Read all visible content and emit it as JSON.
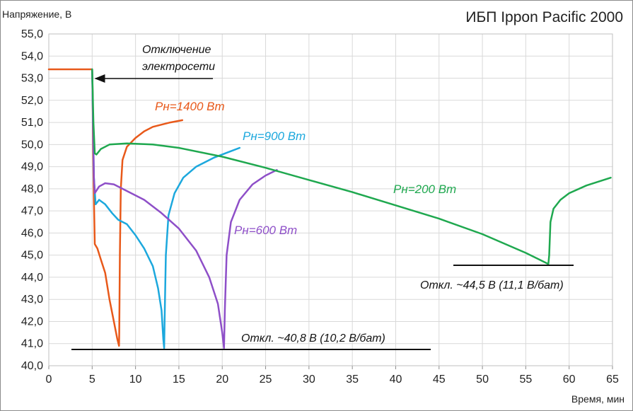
{
  "chart_data": {
    "type": "line",
    "title": "ИБП Ippon Pacific 2000",
    "ylabel": "Напряжение, В",
    "xlabel": "Время, мин",
    "xlim": [
      0,
      65
    ],
    "ylim": [
      40.0,
      55.0
    ],
    "x_ticks": [
      "0",
      "5",
      "10",
      "15",
      "20",
      "25",
      "30",
      "35",
      "40",
      "45",
      "50",
      "55",
      "60",
      "65"
    ],
    "y_ticks": [
      "40,0",
      "41,0",
      "42,0",
      "43,0",
      "44,0",
      "45,0",
      "46,0",
      "47,0",
      "48,0",
      "49,0",
      "50,0",
      "51,0",
      "52,0",
      "53,0",
      "54,0",
      "55,0"
    ],
    "grid": true,
    "legend": "none",
    "series": [
      {
        "name": "Pн=1400 Вт",
        "color": "#E8591A",
        "points": [
          [
            0,
            53.4
          ],
          [
            5.0,
            53.4
          ],
          [
            5.05,
            52.5
          ],
          [
            5.1,
            50.0
          ],
          [
            5.2,
            47.5
          ],
          [
            5.3,
            45.5
          ],
          [
            5.6,
            45.3
          ],
          [
            6.0,
            44.8
          ],
          [
            6.5,
            44.2
          ],
          [
            7.0,
            43.0
          ],
          [
            7.5,
            42.0
          ],
          [
            7.9,
            41.2
          ],
          [
            8.1,
            40.9
          ],
          [
            8.12,
            41.5
          ],
          [
            8.2,
            45.0
          ],
          [
            8.3,
            48.0
          ],
          [
            8.5,
            49.3
          ],
          [
            9.0,
            49.9
          ],
          [
            10.0,
            50.3
          ],
          [
            11.0,
            50.6
          ],
          [
            12.0,
            50.8
          ],
          [
            13.0,
            50.9
          ],
          [
            14.0,
            51.0
          ],
          [
            15.4,
            51.1
          ]
        ]
      },
      {
        "name": "Pн=900 Вт",
        "color": "#1CA8DD",
        "points": [
          [
            5.0,
            53.4
          ],
          [
            5.1,
            51.0
          ],
          [
            5.2,
            48.5
          ],
          [
            5.4,
            47.3
          ],
          [
            5.8,
            47.5
          ],
          [
            6.5,
            47.3
          ],
          [
            7.3,
            46.9
          ],
          [
            8.0,
            46.6
          ],
          [
            9.0,
            46.4
          ],
          [
            10.0,
            45.9
          ],
          [
            11.0,
            45.3
          ],
          [
            12.0,
            44.5
          ],
          [
            12.6,
            43.5
          ],
          [
            13.0,
            42.5
          ],
          [
            13.2,
            41.2
          ],
          [
            13.3,
            40.8
          ],
          [
            13.35,
            42.0
          ],
          [
            13.5,
            45.0
          ],
          [
            13.8,
            46.8
          ],
          [
            14.5,
            47.8
          ],
          [
            15.5,
            48.5
          ],
          [
            17.0,
            49.0
          ],
          [
            19.0,
            49.4
          ],
          [
            21.0,
            49.7
          ],
          [
            22.0,
            49.85
          ]
        ]
      },
      {
        "name": "Pн=600 Вт",
        "color": "#8E4FC8",
        "points": [
          [
            5.0,
            53.4
          ],
          [
            5.1,
            51.0
          ],
          [
            5.2,
            48.5
          ],
          [
            5.3,
            47.8
          ],
          [
            5.8,
            48.1
          ],
          [
            6.5,
            48.25
          ],
          [
            7.5,
            48.2
          ],
          [
            9.0,
            47.9
          ],
          [
            11.0,
            47.5
          ],
          [
            13.0,
            46.9
          ],
          [
            15.0,
            46.2
          ],
          [
            17.0,
            45.2
          ],
          [
            18.5,
            44.0
          ],
          [
            19.5,
            42.8
          ],
          [
            20.0,
            41.5
          ],
          [
            20.2,
            40.8
          ],
          [
            20.3,
            42.5
          ],
          [
            20.5,
            45.0
          ],
          [
            21.0,
            46.5
          ],
          [
            22.0,
            47.5
          ],
          [
            23.5,
            48.2
          ],
          [
            25.0,
            48.6
          ],
          [
            26.3,
            48.85
          ]
        ]
      },
      {
        "name": "Pн=200 Вт",
        "color": "#1FA84F",
        "points": [
          [
            5.0,
            53.4
          ],
          [
            5.15,
            51.0
          ],
          [
            5.3,
            49.6
          ],
          [
            5.5,
            49.55
          ],
          [
            6.0,
            49.8
          ],
          [
            7.0,
            50.0
          ],
          [
            9.0,
            50.05
          ],
          [
            12.0,
            50.0
          ],
          [
            15.0,
            49.85
          ],
          [
            20.0,
            49.45
          ],
          [
            25.0,
            48.95
          ],
          [
            30.0,
            48.4
          ],
          [
            35.0,
            47.85
          ],
          [
            40.0,
            47.25
          ],
          [
            45.0,
            46.65
          ],
          [
            50.0,
            45.95
          ],
          [
            55.0,
            45.1
          ],
          [
            57.6,
            44.6
          ],
          [
            57.7,
            45.0
          ],
          [
            57.85,
            46.5
          ],
          [
            58.2,
            47.1
          ],
          [
            59.0,
            47.5
          ],
          [
            60.0,
            47.8
          ],
          [
            62.0,
            48.15
          ],
          [
            64.8,
            48.5
          ]
        ]
      }
    ],
    "annotations": {
      "outage_label_line1": "Отключение",
      "outage_label_line2": "электросети",
      "cutoff_low": "Откл. ~40,8 В (10,2 В/бат)",
      "cutoff_high": "Откл. ~44,5 В (11,1 В/бат)"
    }
  }
}
